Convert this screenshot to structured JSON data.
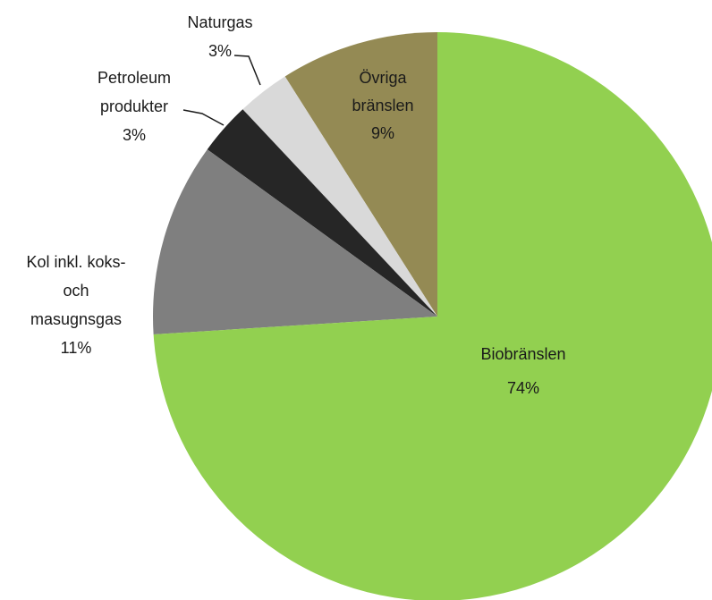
{
  "chart_data": {
    "type": "pie",
    "categories": [
      [
        "Biobränslen"
      ],
      [
        "Kol inkl. koks-",
        "och",
        "masugnsgas"
      ],
      [
        "Petroleum",
        "produkter"
      ],
      [
        "Naturgas"
      ],
      [
        "Övriga",
        "bränslen"
      ]
    ],
    "values": [
      74,
      11,
      3,
      3,
      9
    ],
    "value_labels": [
      "74%",
      "11%",
      "3%",
      "3%",
      "9%"
    ],
    "colors": [
      "#92d050",
      "#7f7f7f",
      "#262626",
      "#d9d9d9",
      "#948a54"
    ]
  }
}
